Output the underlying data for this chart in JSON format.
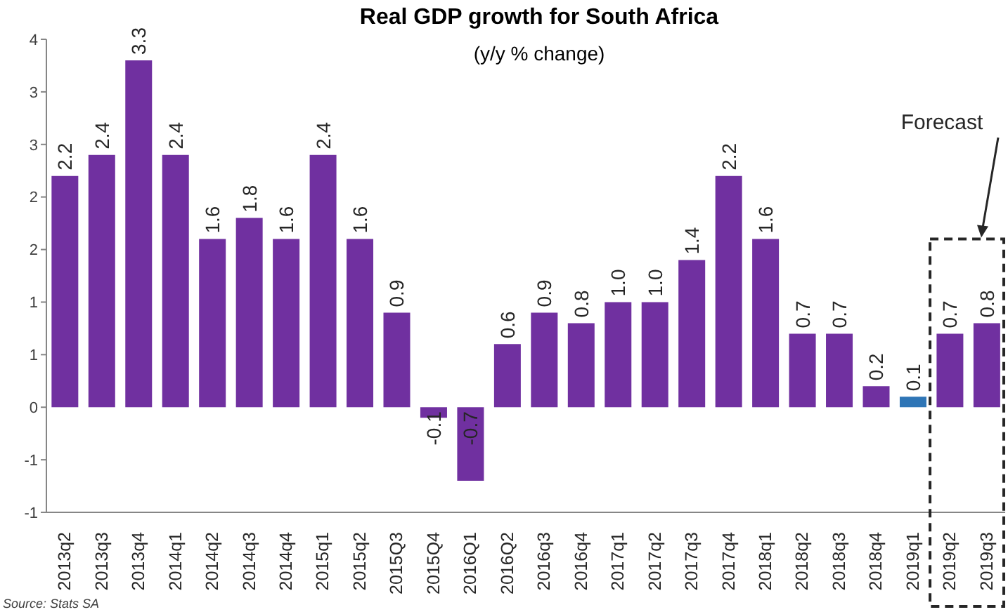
{
  "chart_data": {
    "type": "bar",
    "title": "Real GDP growth for South Africa",
    "subtitle": "(y/y % change)",
    "categories": [
      "2013q2",
      "2013q3",
      "2013q4",
      "2014q1",
      "2014q2",
      "2014q3",
      "2014q4",
      "2015q1",
      "2015q2",
      "2015Q3",
      "2015Q4",
      "2016Q1",
      "2016Q2",
      "2016q3",
      "2016q4",
      "2017q1",
      "2017q2",
      "2017q3",
      "2017q4",
      "2018q1",
      "2018q2",
      "2018q3",
      "2018q4",
      "2019q1",
      "2019q2",
      "2019q3"
    ],
    "values": [
      2.2,
      2.4,
      3.3,
      2.4,
      1.6,
      1.8,
      1.6,
      2.4,
      1.6,
      0.9,
      -0.1,
      -0.7,
      0.6,
      0.9,
      0.8,
      1.0,
      1.0,
      1.4,
      2.2,
      1.6,
      0.7,
      0.7,
      0.2,
      0.1,
      0.7,
      0.8
    ],
    "value_labels": [
      "2.2",
      "2.4",
      "3.3",
      "2.4",
      "1.6",
      "1.8",
      "1.6",
      "2.4",
      "1.6",
      "0.9",
      "-0.1",
      "-0.7",
      "0.6",
      "0.9",
      "0.8",
      "1.0",
      "1.0",
      "1.4",
      "2.2",
      "1.6",
      "0.7",
      "0.7",
      "0.2",
      "0.1",
      "0.7",
      "0.8"
    ],
    "colors": [
      "#7030a0",
      "#7030a0",
      "#7030a0",
      "#7030a0",
      "#7030a0",
      "#7030a0",
      "#7030a0",
      "#7030a0",
      "#7030a0",
      "#7030a0",
      "#7030a0",
      "#7030a0",
      "#7030a0",
      "#7030a0",
      "#7030a0",
      "#7030a0",
      "#7030a0",
      "#7030a0",
      "#7030a0",
      "#7030a0",
      "#7030a0",
      "#7030a0",
      "#7030a0",
      "#2e75b6",
      "#7030a0",
      "#7030a0"
    ],
    "ylim": [
      -1,
      3.5
    ],
    "yticks": [
      {
        "value": -1,
        "label": "-1"
      },
      {
        "value": -0.5,
        "label": "-1"
      },
      0,
      {
        "value": 0.5,
        "label": "1"
      },
      1,
      {
        "value": 1.5,
        "label": "2"
      },
      2,
      {
        "value": 2.5,
        "label": "3"
      },
      3,
      {
        "value": 3.5,
        "label": "4"
      }
    ],
    "annotations": [
      "Forecast",
      "Source: Stats SA"
    ],
    "grid": false,
    "legend": false
  }
}
